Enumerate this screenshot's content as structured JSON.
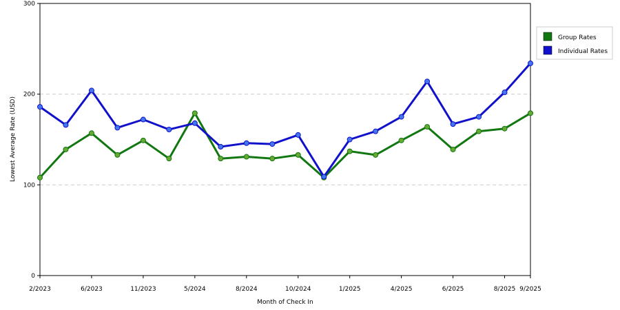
{
  "chart_data": {
    "type": "line",
    "title": "",
    "xlabel": "Month of Check In",
    "ylabel": "Lowest Average Rate (USD)",
    "ylim": [
      0,
      300
    ],
    "yticks": [
      "0",
      "100",
      "200",
      "300"
    ],
    "x_tick_labels": [
      {
        "label": "2/2023",
        "pos": 0
      },
      {
        "label": "6/2023",
        "pos": 2
      },
      {
        "label": "11/2023",
        "pos": 4
      },
      {
        "label": "5/2024",
        "pos": 6
      },
      {
        "label": "8/2024",
        "pos": 8
      },
      {
        "label": "10/2024",
        "pos": 10
      },
      {
        "label": "1/2025",
        "pos": 12
      },
      {
        "label": "4/2025",
        "pos": 14
      },
      {
        "label": "6/2025",
        "pos": 16
      },
      {
        "label": "8/2025",
        "pos": 18
      },
      {
        "label": "9/2025",
        "pos": 19
      }
    ],
    "grid": "horizontal dashed",
    "legend_position": "right",
    "series": [
      {
        "name": "Group Rates",
        "color": "#117711",
        "marker_color": "#66aa33",
        "values": [
          108,
          139,
          157,
          133,
          149,
          129,
          179,
          129,
          131,
          129,
          133,
          108,
          137,
          133,
          149,
          164,
          139,
          159,
          162,
          179
        ]
      },
      {
        "name": "Individual Rates",
        "color": "#1111cc",
        "marker_color": "#4477ee",
        "values": [
          186,
          166,
          204,
          163,
          172,
          161,
          168,
          142,
          146,
          145,
          155,
          109,
          150,
          159,
          175,
          214,
          167,
          175,
          202,
          234
        ]
      }
    ]
  }
}
